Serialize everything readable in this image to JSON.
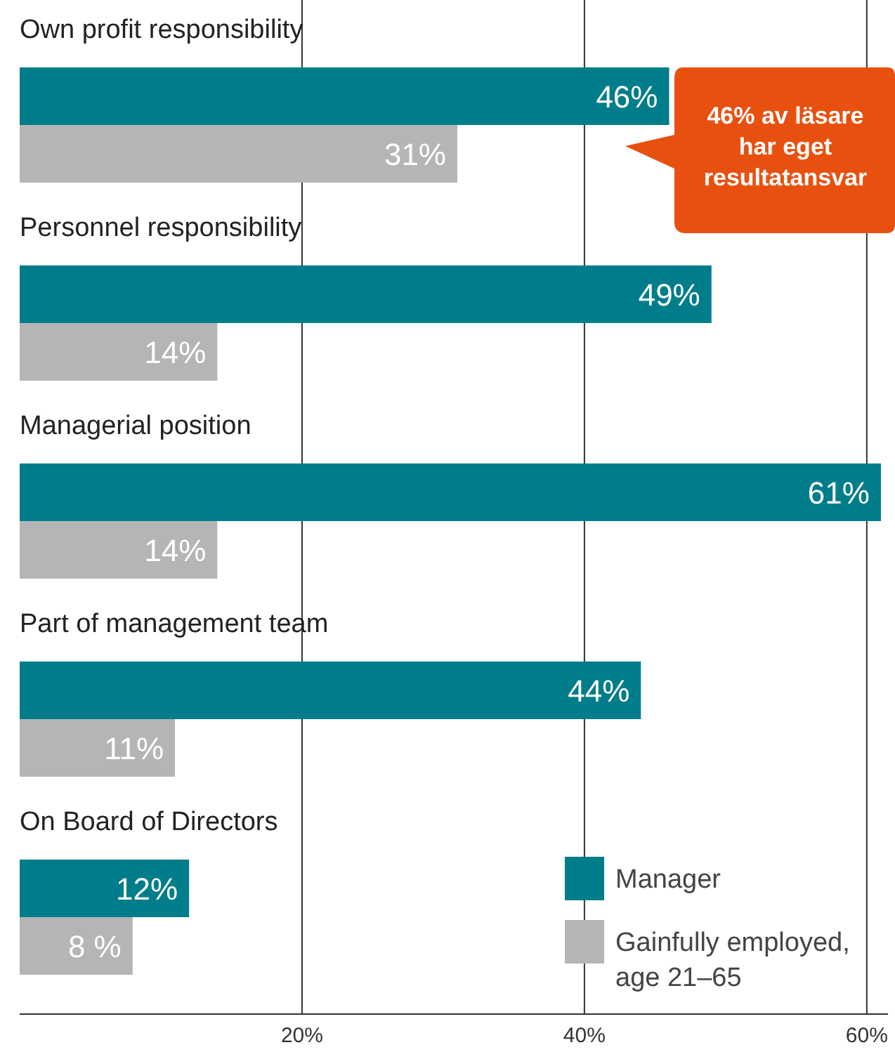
{
  "chart_data": {
    "type": "bar",
    "orientation": "horizontal",
    "categories": [
      "Own profit responsibility",
      "Personnel responsibility",
      "Managerial position",
      "Part of management team",
      "On Board of Directors"
    ],
    "series": [
      {
        "name": "Manager",
        "color": "#007d8a",
        "values": [
          46,
          49,
          61,
          44,
          12
        ],
        "value_labels": [
          "46%",
          "49%",
          "61%",
          "44%",
          "12%"
        ]
      },
      {
        "name": "Gainfully employed, age 21–65",
        "color": "#b5b5b7",
        "values": [
          31,
          14,
          14,
          11,
          8
        ],
        "value_labels": [
          "31%",
          "14%",
          "14%",
          "11%",
          "8 %"
        ]
      }
    ],
    "xlim": [
      0,
      61.5
    ],
    "xticks": [
      {
        "value": 20,
        "label": "20%"
      },
      {
        "value": 40,
        "label": "40%"
      },
      {
        "value": 60,
        "label": "60%"
      }
    ],
    "grid": "x",
    "legend": "bottom right",
    "annotations": [
      "46% av läsare har eget resultatansvar"
    ]
  }
}
